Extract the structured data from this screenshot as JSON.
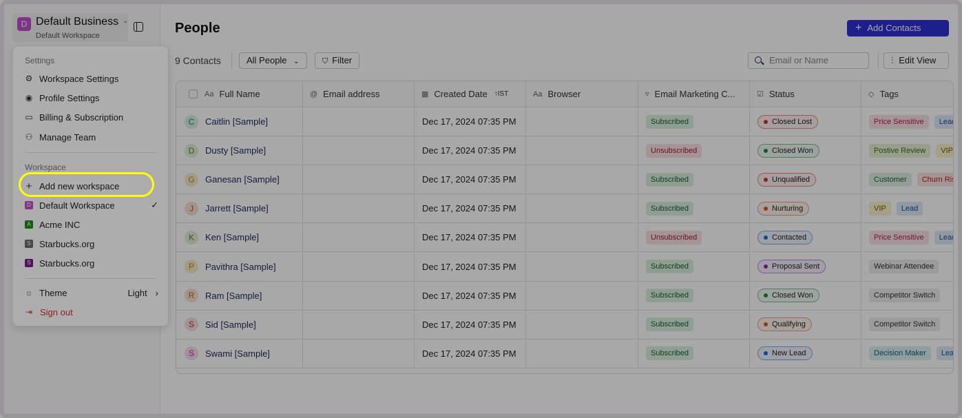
{
  "sidebar": {
    "business_name": "Default Business",
    "workspace_name": "Default Workspace",
    "avatar_letter": "D"
  },
  "header": {
    "title": "People",
    "add_contacts": "Add Contacts"
  },
  "toolbar": {
    "count": "9 Contacts",
    "view": "All People",
    "filter": "Filter",
    "search_placeholder": "Email or Name",
    "edit_view": "Edit View"
  },
  "table": {
    "columns": [
      "Full Name",
      "Email address",
      "Created Date",
      "Browser",
      "Email Marketing C...",
      "Status",
      "Tags"
    ],
    "sort_label": "IST",
    "rows": [
      {
        "initial": "C",
        "name": "Caitlin [Sample]",
        "date": "Dec 17, 2024 07:35 PM",
        "email_marketing": "Subscribed",
        "status": "Closed Lost",
        "tags": [
          "Price Sensitive",
          "Lead"
        ]
      },
      {
        "initial": "D",
        "name": "Dusty [Sample]",
        "date": "Dec 17, 2024 07:35 PM",
        "email_marketing": "Unsubscribed",
        "status": "Closed Won",
        "tags": [
          "Postive Review",
          "VIP"
        ]
      },
      {
        "initial": "G",
        "name": "Ganesan [Sample]",
        "date": "Dec 17, 2024 07:35 PM",
        "email_marketing": "Subscribed",
        "status": "Unqualified",
        "tags": [
          "Customer",
          "Churn Risk"
        ]
      },
      {
        "initial": "J",
        "name": "Jarrett [Sample]",
        "date": "Dec 17, 2024 07:35 PM",
        "email_marketing": "Subscribed",
        "status": "Nurturing",
        "tags": [
          "VIP",
          "Lead"
        ]
      },
      {
        "initial": "K",
        "name": "Ken [Sample]",
        "date": "Dec 17, 2024 07:35 PM",
        "email_marketing": "Unsubscribed",
        "status": "Contacted",
        "tags": [
          "Price Sensitive",
          "Lead"
        ]
      },
      {
        "initial": "P",
        "name": "Pavithra [Sample]",
        "date": "Dec 17, 2024 07:35 PM",
        "email_marketing": "Subscribed",
        "status": "Proposal Sent",
        "tags": [
          "Webinar Attendee"
        ]
      },
      {
        "initial": "R",
        "name": "Ram [Sample]",
        "date": "Dec 17, 2024 07:35 PM",
        "email_marketing": "Subscribed",
        "status": "Closed Won",
        "tags": [
          "Competitor Switch"
        ]
      },
      {
        "initial": "S",
        "name": "Sid [Sample]",
        "date": "Dec 17, 2024 07:35 PM",
        "email_marketing": "Subscribed",
        "status": "Qualifying",
        "tags": [
          "Competitor Switch"
        ]
      },
      {
        "initial": "S",
        "name": "Swami [Sample]",
        "date": "Dec 17, 2024 07:35 PM",
        "email_marketing": "Subscribed",
        "status": "New Lead",
        "tags": [
          "Decision Maker",
          "Lead"
        ]
      }
    ]
  },
  "menu": {
    "settings_label": "Settings",
    "settings": [
      "Workspace Settings",
      "Profile Settings",
      "Billing & Subscription",
      "Manage Team"
    ],
    "workspace_label": "Workspace",
    "add_workspace": "Add new workspace",
    "workspaces": [
      {
        "letter": "D",
        "name": "Default Workspace",
        "color": "#c050c8",
        "selected": true
      },
      {
        "letter": "A",
        "name": "Acme INC",
        "color": "#1a8a1a"
      },
      {
        "letter": "S",
        "name": "Starbucks.org",
        "color": "#6b6b6b"
      },
      {
        "letter": "S",
        "name": "Starbucks.org",
        "color": "#7a1a8a"
      }
    ],
    "theme_label": "Theme",
    "theme_value": "Light",
    "sign_out": "Sign out"
  },
  "colors": {
    "accent": "#2e2fd6",
    "highlight": "#ffff00",
    "sign_out": "#d32f2f"
  }
}
